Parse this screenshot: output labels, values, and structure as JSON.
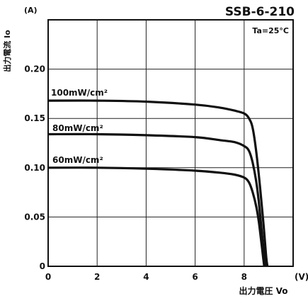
{
  "chart_data": {
    "type": "line",
    "title": "SSB-6-210",
    "condition": "Ta=25°C",
    "xlabel": "出力電圧 Vo",
    "xunit": "(V)",
    "ylabel": "出力電流 Io",
    "yunit": "(A)",
    "xlim": [
      0,
      10
    ],
    "ylim": [
      0,
      0.25
    ],
    "grid": true,
    "xticks": [
      0,
      2,
      4,
      6,
      8
    ],
    "xtick_labels": [
      "0",
      "2",
      "4",
      "6",
      "8"
    ],
    "yticks": [
      0,
      0.05,
      0.1,
      0.15,
      0.2
    ],
    "ytick_labels": [
      "0",
      "0.05",
      "0.10",
      "0.15",
      "0.20"
    ],
    "series": [
      {
        "name": "100mW/cm²",
        "x": [
          0,
          2,
          4,
          6,
          7,
          7.6,
          8.0,
          8.2,
          8.35,
          8.5,
          8.65,
          8.8,
          8.9,
          8.95
        ],
        "y": [
          0.168,
          0.168,
          0.167,
          0.164,
          0.161,
          0.158,
          0.155,
          0.15,
          0.14,
          0.115,
          0.08,
          0.04,
          0.01,
          0.0
        ]
      },
      {
        "name": "80mW/cm²",
        "x": [
          0,
          2,
          4,
          6,
          7,
          7.6,
          8.0,
          8.2,
          8.35,
          8.5,
          8.6,
          8.7,
          8.8,
          8.87
        ],
        "y": [
          0.134,
          0.134,
          0.133,
          0.131,
          0.128,
          0.126,
          0.122,
          0.117,
          0.105,
          0.085,
          0.065,
          0.04,
          0.015,
          0.0
        ]
      },
      {
        "name": "60mW/cm²",
        "x": [
          0,
          2,
          4,
          6,
          7,
          7.6,
          8.0,
          8.2,
          8.35,
          8.5,
          8.6,
          8.7,
          8.78,
          8.82
        ],
        "y": [
          0.1,
          0.1,
          0.099,
          0.097,
          0.095,
          0.093,
          0.09,
          0.085,
          0.075,
          0.06,
          0.045,
          0.025,
          0.008,
          0.0
        ]
      }
    ]
  }
}
